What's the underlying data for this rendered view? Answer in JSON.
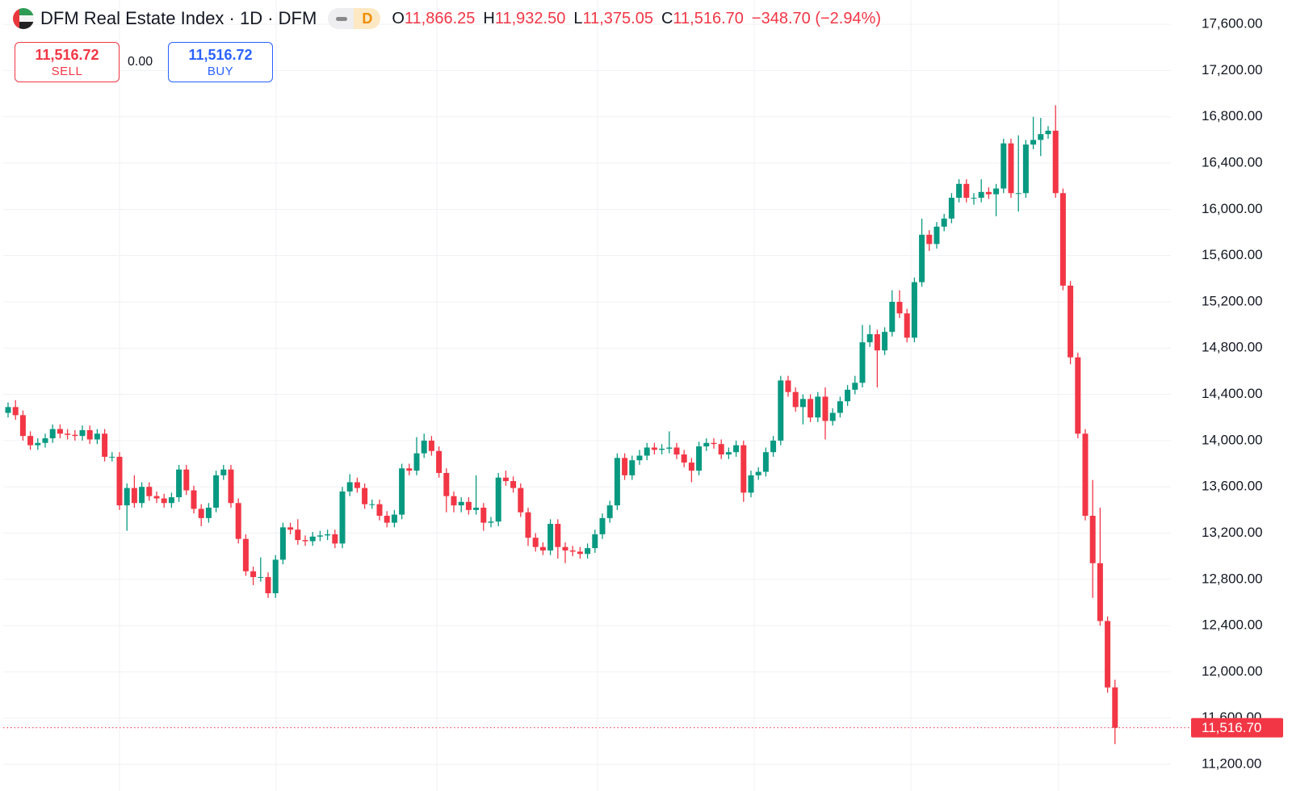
{
  "chart_data": {
    "type": "candlestick",
    "title": "DFM Real Estate Index · 1D · DFM",
    "interval_badge": "D",
    "ohlc_legend": {
      "o_label": "O",
      "open": "11,866.25",
      "h_label": "H",
      "high": "11,932.50",
      "l_label": "L",
      "low": "11,375.05",
      "c_label": "C",
      "close": "11,516.70",
      "change": "−348.70 (−2.94%)"
    },
    "sell": {
      "price": "11,516.72",
      "label": "SELL"
    },
    "spread": "0.00",
    "buy": {
      "price": "11,516.72",
      "label": "BUY"
    },
    "up_color": "#089981",
    "down_color": "#f23645",
    "grid": true,
    "ylim": [
      10970,
      17810
    ],
    "yticks": [
      {
        "value": 11200,
        "label": "11,200.00"
      },
      {
        "value": 11600,
        "label": "11,600.00"
      },
      {
        "value": 12000,
        "label": "12,000.00"
      },
      {
        "value": 12400,
        "label": "12,400.00"
      },
      {
        "value": 12800,
        "label": "12,800.00"
      },
      {
        "value": 13200,
        "label": "13,200.00"
      },
      {
        "value": 13600,
        "label": "13,600.00"
      },
      {
        "value": 14000,
        "label": "14,000.00"
      },
      {
        "value": 14400,
        "label": "14,400.00"
      },
      {
        "value": 14800,
        "label": "14,800.00"
      },
      {
        "value": 15200,
        "label": "15,200.00"
      },
      {
        "value": 15600,
        "label": "15,600.00"
      },
      {
        "value": 16000,
        "label": "16,000.00"
      },
      {
        "value": 16400,
        "label": "16,400.00"
      },
      {
        "value": 16800,
        "label": "16,800.00"
      },
      {
        "value": 17200,
        "label": "17,200.00"
      },
      {
        "value": 17600,
        "label": "17,600.00"
      }
    ],
    "last_price": {
      "value": 11516.7,
      "label": "11,516.70"
    },
    "open": [
      14240,
      14290,
      14220,
      14040,
      13960,
      13980,
      14020,
      14100,
      14060,
      14050,
      14040,
      14090,
      14010,
      14060,
      13860,
      13860,
      13440,
      13590,
      13460,
      13600,
      13520,
      13500,
      13460,
      13510,
      13750,
      13570,
      13410,
      13330,
      13420,
      13700,
      13750,
      13460,
      13150,
      12870,
      12820,
      12820,
      12680,
      12970,
      13250,
      13230,
      13140,
      13130,
      13170,
      13180,
      13190,
      13110,
      13560,
      13640,
      13590,
      13450,
      13450,
      13350,
      13290,
      13360,
      13760,
      13740,
      13890,
      14000,
      13910,
      13720,
      13520,
      13440,
      13470,
      13400,
      13420,
      13290,
      13300,
      13680,
      13650,
      13590,
      13380,
      13160,
      13080,
      13050,
      13280,
      13080,
      13050,
      13040,
      13020,
      13070,
      13190,
      13330,
      13440,
      13850,
      13700,
      13830,
      13870,
      13940,
      13920,
      13930,
      13940,
      13880,
      13810,
      13740,
      13950,
      13980,
      13970,
      13880,
      13900,
      13960,
      13550,
      13700,
      13730,
      13900,
      14000,
      14520,
      14420,
      14290,
      14360,
      14200,
      14380,
      14170,
      14240,
      14340,
      14440,
      14500,
      14850,
      14920,
      14780,
      14940,
      15200,
      15100,
      14890,
      15370,
      15780,
      15700,
      15850,
      15920,
      16100,
      16220,
      16100,
      16100,
      16150,
      16130,
      16180,
      16570,
      16140,
      16140,
      16560,
      16600,
      16650,
      16680,
      16140,
      15340,
      14720,
      14060,
      13350,
      12940,
      12440,
      11866.25
    ],
    "high": [
      14330,
      14350,
      14260,
      14080,
      14020,
      14060,
      14140,
      14140,
      14100,
      14090,
      14130,
      14130,
      14100,
      14100,
      13900,
      13900,
      13630,
      13700,
      13640,
      13640,
      13560,
      13540,
      13550,
      13790,
      13790,
      13610,
      13450,
      13460,
      13740,
      13790,
      13790,
      13500,
      13190,
      12910,
      12990,
      12860,
      13010,
      13290,
      13290,
      13320,
      13180,
      13210,
      13220,
      13230,
      13230,
      13600,
      13710,
      13680,
      13630,
      13490,
      13490,
      13390,
      13400,
      13800,
      13800,
      14030,
      14060,
      14040,
      13950,
      13760,
      13560,
      13510,
      13510,
      13700,
      13460,
      13340,
      13720,
      13740,
      13690,
      13630,
      13420,
      13200,
      13120,
      13320,
      13320,
      13120,
      13090,
      13080,
      13110,
      13230,
      13370,
      13480,
      13890,
      13890,
      13870,
      13920,
      13980,
      13980,
      13970,
      14080,
      13980,
      13920,
      13850,
      13990,
      14020,
      14020,
      14010,
      13940,
      14000,
      14000,
      13740,
      13770,
      13940,
      14040,
      14560,
      14560,
      14460,
      14400,
      14400,
      14420,
      14460,
      14280,
      14380,
      14480,
      14560,
      15000,
      15000,
      14960,
      14980,
      15300,
      15300,
      15140,
      15410,
      15920,
      15820,
      15890,
      15960,
      16140,
      16260,
      16260,
      16140,
      16260,
      16190,
      16220,
      16610,
      16610,
      16640,
      16600,
      16800,
      16790,
      16720,
      16900,
      16180,
      15380,
      14760,
      14100,
      13660,
      13420,
      12480,
      11932.5
    ],
    "low": [
      14200,
      14180,
      14000,
      13920,
      13920,
      13940,
      13980,
      14020,
      14010,
      14000,
      14000,
      13970,
      13970,
      13820,
      13820,
      13400,
      13220,
      13420,
      13420,
      13480,
      13460,
      13420,
      13420,
      13470,
      13530,
      13370,
      13260,
      13290,
      13380,
      13660,
      13420,
      13110,
      12830,
      12750,
      12780,
      12640,
      12640,
      12930,
      13190,
      13100,
      13090,
      13090,
      13130,
      13140,
      13070,
      13070,
      13520,
      13550,
      13410,
      13410,
      13310,
      13250,
      13250,
      13320,
      13700,
      13700,
      13850,
      13870,
      13680,
      13380,
      13380,
      13380,
      13360,
      13360,
      13220,
      13250,
      13260,
      13610,
      13550,
      13340,
      13090,
      13040,
      13010,
      13010,
      12980,
      12940,
      13000,
      12980,
      12980,
      13030,
      13150,
      13290,
      13400,
      13660,
      13660,
      13790,
      13830,
      13880,
      13880,
      13890,
      13840,
      13770,
      13640,
      13700,
      13910,
      13930,
      13840,
      13840,
      13860,
      13470,
      13510,
      13660,
      13690,
      13860,
      13960,
      14380,
      14250,
      14140,
      14160,
      14160,
      14010,
      14130,
      14200,
      14300,
      14400,
      14460,
      14810,
      14460,
      14740,
      14900,
      15060,
      14850,
      14850,
      15330,
      15640,
      15660,
      15810,
      15880,
      16060,
      16060,
      16040,
      16060,
      16090,
      15940,
      16140,
      16100,
      15980,
      16100,
      16520,
      16460,
      16610,
      16100,
      15300,
      14660,
      14020,
      13310,
      12640,
      12400,
      11820,
      11375.05
    ],
    "close": [
      14290,
      14220,
      14040,
      13960,
      13980,
      14020,
      14100,
      14060,
      14050,
      14040,
      14090,
      14010,
      14060,
      13860,
      13860,
      13440,
      13590,
      13460,
      13600,
      13520,
      13500,
      13460,
      13510,
      13750,
      13570,
      13410,
      13330,
      13420,
      13700,
      13750,
      13460,
      13150,
      12870,
      12820,
      12820,
      12680,
      12970,
      13250,
      13230,
      13140,
      13130,
      13170,
      13180,
      13190,
      13110,
      13560,
      13640,
      13590,
      13450,
      13450,
      13350,
      13290,
      13360,
      13760,
      13740,
      13890,
      14000,
      13910,
      13720,
      13520,
      13440,
      13470,
      13400,
      13420,
      13290,
      13300,
      13680,
      13650,
      13590,
      13380,
      13160,
      13080,
      13050,
      13280,
      13080,
      13050,
      13040,
      13020,
      13070,
      13190,
      13330,
      13440,
      13850,
      13700,
      13830,
      13870,
      13940,
      13920,
      13930,
      13940,
      13880,
      13810,
      13740,
      13950,
      13980,
      13970,
      13880,
      13900,
      13960,
      13550,
      13700,
      13730,
      13900,
      14000,
      14520,
      14420,
      14290,
      14360,
      14200,
      14380,
      14170,
      14240,
      14340,
      14440,
      14500,
      14850,
      14920,
      14780,
      14940,
      15200,
      15100,
      14890,
      15370,
      15780,
      15700,
      15850,
      15920,
      16100,
      16220,
      16100,
      16100,
      16150,
      16130,
      16180,
      16570,
      16140,
      16140,
      16560,
      16600,
      16650,
      16680,
      16140,
      15340,
      14720,
      14060,
      13350,
      12940,
      12440,
      11865.4,
      11516.7
    ]
  }
}
